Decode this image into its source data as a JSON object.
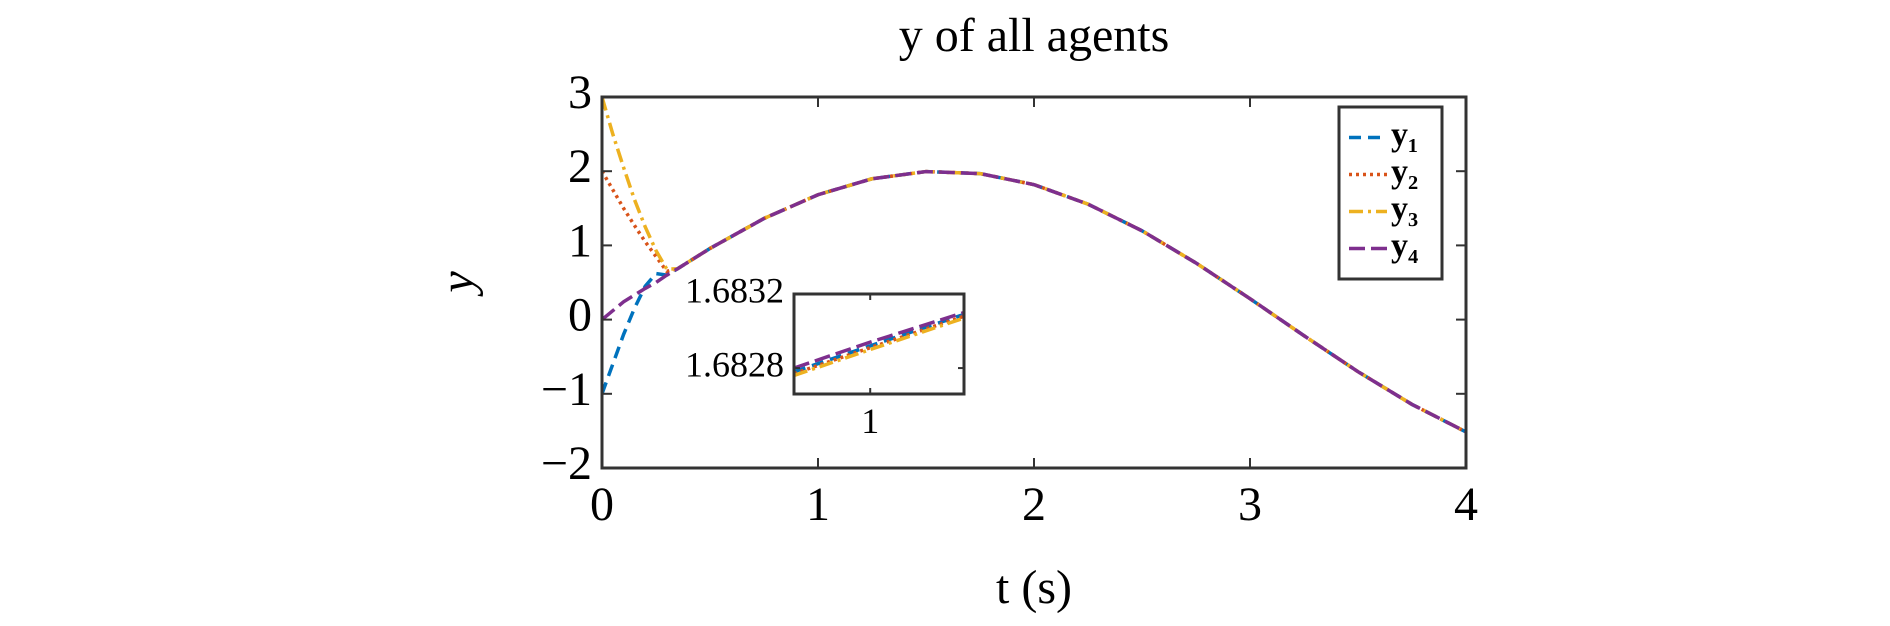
{
  "chart_data": [
    {
      "type": "line",
      "title": "y of all agents",
      "xlabel": "t (s)",
      "ylabel": "y",
      "x": [
        0,
        0.05,
        0.1,
        0.15,
        0.2,
        0.25,
        0.3,
        0.35,
        0.5,
        0.75,
        1,
        1.25,
        1.5,
        1.75,
        2,
        2.25,
        2.5,
        2.75,
        3,
        3.25,
        3.5,
        3.75,
        4
      ],
      "series": [
        {
          "name": "y₁",
          "color": "#0072bd",
          "dash": "dashed",
          "values": [
            -1,
            -0.6,
            -0.2,
            0.15,
            0.45,
            0.62,
            0.6,
            0.686,
            0.959,
            1.363,
            1.683,
            1.898,
            1.995,
            1.968,
            1.819,
            1.556,
            1.197,
            0.763,
            0.282,
            -0.217,
            -0.702,
            -1.143,
            -1.514
          ]
        },
        {
          "name": "y₂",
          "color": "#d95319",
          "dash": "dotted",
          "values": [
            2,
            1.75,
            1.5,
            1.27,
            1.05,
            0.85,
            0.65,
            0.686,
            0.959,
            1.363,
            1.683,
            1.898,
            1.995,
            1.968,
            1.819,
            1.556,
            1.197,
            0.763,
            0.282,
            -0.217,
            -0.702,
            -1.143,
            -1.514
          ]
        },
        {
          "name": "y₃",
          "color": "#edb120",
          "dash": "dashdot",
          "values": [
            3,
            2.5,
            2.05,
            1.62,
            1.25,
            0.93,
            0.68,
            0.686,
            0.959,
            1.363,
            1.683,
            1.898,
            1.995,
            1.968,
            1.819,
            1.556,
            1.197,
            0.763,
            0.282,
            -0.217,
            -0.702,
            -1.143,
            -1.514
          ]
        },
        {
          "name": "y₄",
          "color": "#7e2f8e",
          "dash": "longdash",
          "values": [
            0,
            0.12,
            0.24,
            0.33,
            0.42,
            0.5,
            0.6,
            0.686,
            0.959,
            1.363,
            1.683,
            1.898,
            1.995,
            1.968,
            1.819,
            1.556,
            1.197,
            0.763,
            0.282,
            -0.217,
            -0.702,
            -1.143,
            -1.514
          ]
        }
      ],
      "xlim": [
        0,
        4
      ],
      "ylim": [
        -2,
        3
      ],
      "xticks": [
        0,
        1,
        2,
        3,
        4
      ],
      "yticks": [
        {
          "value": -2,
          "label": "−2"
        },
        {
          "value": -1,
          "label": "−1"
        },
        0,
        1,
        2,
        3
      ],
      "legend": "upper right"
    },
    {
      "type": "line",
      "x": [
        0.99987,
        1,
        1.00016
      ],
      "series": [
        {
          "color": "#0072bd",
          "dash": "dashed",
          "values": [
            1.68278,
            1.68292,
            1.68309
          ]
        },
        {
          "color": "#d95319",
          "dash": "dotted",
          "values": [
            1.68277,
            1.68291,
            1.68308
          ]
        },
        {
          "color": "#edb120",
          "dash": "dashdot",
          "values": [
            1.68276,
            1.6829,
            1.68307
          ]
        },
        {
          "color": "#7e2f8e",
          "dash": "longdash",
          "values": [
            1.6828,
            1.68294,
            1.6831
          ]
        }
      ],
      "xlim": [
        0.99987,
        1.00016
      ],
      "ylim": [
        1.68266,
        1.6832
      ],
      "xticks": [
        1
      ],
      "yticks": [
        1.6828,
        1.6832
      ]
    }
  ]
}
